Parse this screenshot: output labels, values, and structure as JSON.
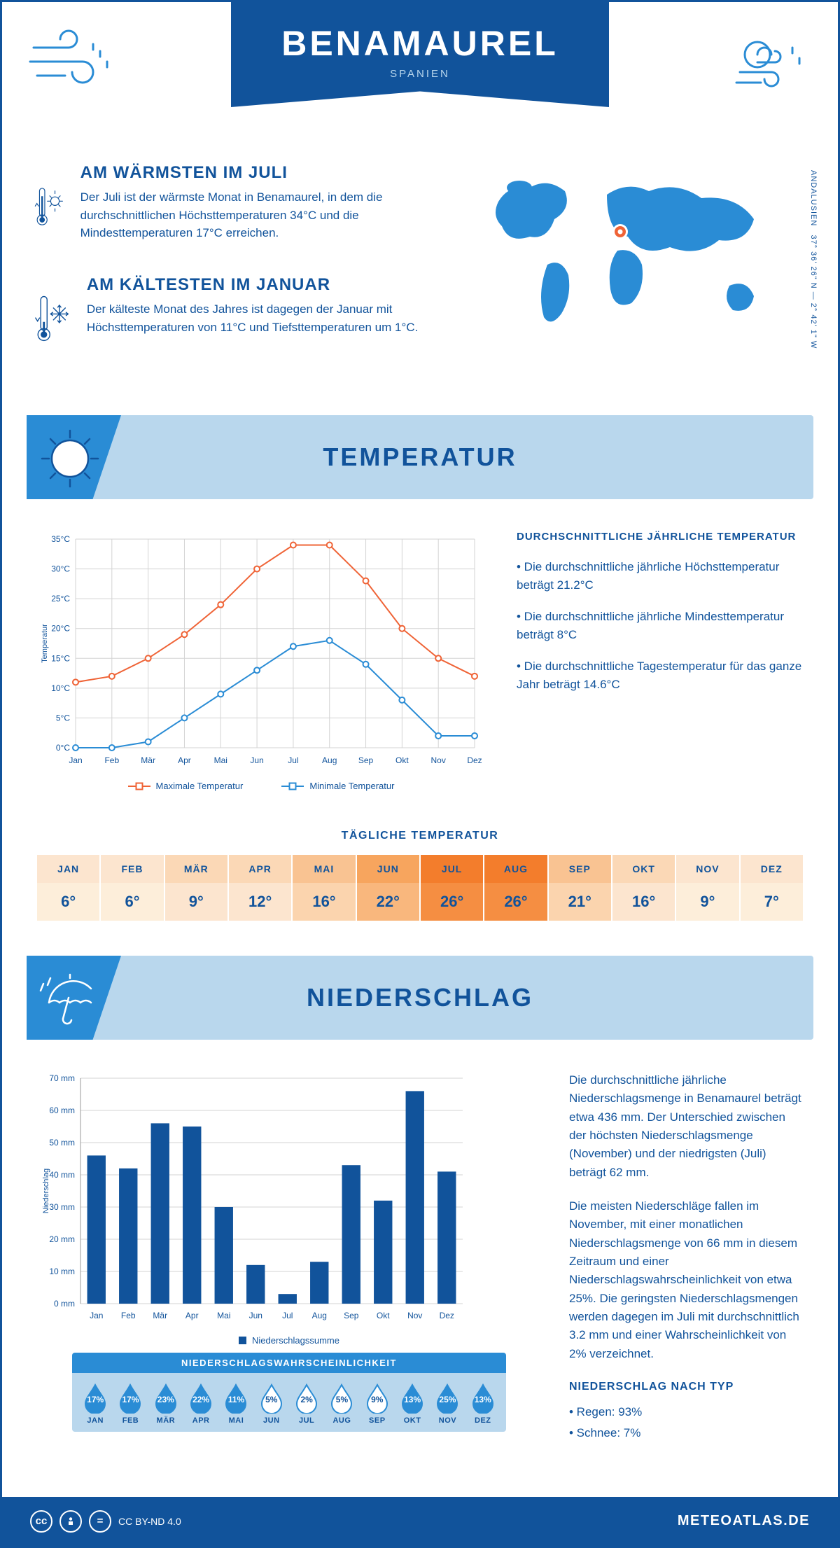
{
  "header": {
    "city": "BENAMAUREL",
    "country": "SPANIEN"
  },
  "coords": {
    "lat": "37° 36' 26\" N — 2° 42' 1\" W",
    "region": "ANDALUSIEN"
  },
  "warm": {
    "title": "AM WÄRMSTEN IM JULI",
    "text": "Der Juli ist der wärmste Monat in Benamaurel, in dem die durchschnittlichen Höchsttemperaturen 34°C und die Mindesttemperaturen 17°C erreichen."
  },
  "cold": {
    "title": "AM KÄLTESTEN IM JANUAR",
    "text": "Der kälteste Monat des Jahres ist dagegen der Januar mit Höchsttemperaturen von 11°C und Tiefsttemperaturen um 1°C."
  },
  "temp_section": "TEMPERATUR",
  "temp_chart": {
    "type": "line",
    "months": [
      "Jan",
      "Feb",
      "Mär",
      "Apr",
      "Mai",
      "Jun",
      "Jul",
      "Aug",
      "Sep",
      "Okt",
      "Nov",
      "Dez"
    ],
    "max": [
      11,
      12,
      15,
      19,
      24,
      30,
      34,
      34,
      28,
      20,
      15,
      12
    ],
    "min": [
      0,
      0,
      1,
      5,
      9,
      13,
      17,
      18,
      14,
      8,
      2,
      2
    ],
    "max_color": "#ef6336",
    "min_color": "#2a8cd5",
    "ylim": [
      0,
      35
    ],
    "ytick_step": 5,
    "yunit": "°C",
    "ylabel": "Temperatur",
    "grid_color": "#d3d3d3",
    "legend_max": "Maximale Temperatur",
    "legend_min": "Minimale Temperatur"
  },
  "temp_text": {
    "title": "DURCHSCHNITTLICHE JÄHRLICHE TEMPERATUR",
    "b1": "• Die durchschnittliche jährliche Höchsttemperatur beträgt 21.2°C",
    "b2": "• Die durchschnittliche jährliche Mindesttemperatur beträgt 8°C",
    "b3": "• Die durchschnittliche Tagestemperatur für das ganze Jahr beträgt 14.6°C"
  },
  "daily": {
    "title": "TÄGLICHE TEMPERATUR",
    "months": [
      "JAN",
      "FEB",
      "MÄR",
      "APR",
      "MAI",
      "JUN",
      "JUL",
      "AUG",
      "SEP",
      "OKT",
      "NOV",
      "DEZ"
    ],
    "values": [
      "6°",
      "6°",
      "9°",
      "12°",
      "16°",
      "22°",
      "26°",
      "26°",
      "21°",
      "16°",
      "9°",
      "7°"
    ],
    "head_colors": [
      "#fce5cf",
      "#fce5cf",
      "#fbd8b6",
      "#fbd8b6",
      "#f9c392",
      "#f7a55e",
      "#f37d2c",
      "#f37d2c",
      "#f9c392",
      "#fbd8b6",
      "#fce5cf",
      "#fce5cf"
    ],
    "val_colors": [
      "#fdeeda",
      "#fdeeda",
      "#fce5cf",
      "#fce5cf",
      "#fbd4ae",
      "#f9b77d",
      "#f58e42",
      "#f58e42",
      "#fbd4ae",
      "#fce5cf",
      "#fdeeda",
      "#fdeeda"
    ]
  },
  "precip_section": "NIEDERSCHLAG",
  "precip_chart": {
    "type": "bar",
    "months": [
      "Jan",
      "Feb",
      "Mär",
      "Apr",
      "Mai",
      "Jun",
      "Jul",
      "Aug",
      "Sep",
      "Okt",
      "Nov",
      "Dez"
    ],
    "values": [
      46,
      42,
      56,
      55,
      30,
      12,
      3,
      13,
      43,
      32,
      66,
      41
    ],
    "bar_color": "#11539b",
    "ylim": [
      0,
      70
    ],
    "ytick_step": 10,
    "yunit": " mm",
    "ylabel": "Niederschlag",
    "grid_color": "#d3d3d3",
    "legend": "Niederschlagssumme"
  },
  "precip_text": {
    "p1": "Die durchschnittliche jährliche Niederschlagsmenge in Benamaurel beträgt etwa 436 mm. Der Unterschied zwischen der höchsten Niederschlagsmenge (November) und der niedrigsten (Juli) beträgt 62 mm.",
    "p2": "Die meisten Niederschläge fallen im November, mit einer monatlichen Niederschlagsmenge von 66 mm in diesem Zeitraum und einer Niederschlagswahrscheinlichkeit von etwa 25%. Die geringsten Niederschlagsmengen werden dagegen im Juli mit durchschnittlich 3.2 mm und einer Wahrscheinlichkeit von 2% verzeichnet.",
    "type_title": "NIEDERSCHLAG NACH TYP",
    "type1": "• Regen: 93%",
    "type2": "• Schnee: 7%"
  },
  "prob": {
    "title": "NIEDERSCHLAGSWAHRSCHEINLICHKEIT",
    "months": [
      "JAN",
      "FEB",
      "MÄR",
      "APR",
      "MAI",
      "JUN",
      "JUL",
      "AUG",
      "SEP",
      "OKT",
      "NOV",
      "DEZ"
    ],
    "pct": [
      "17%",
      "17%",
      "23%",
      "22%",
      "11%",
      "5%",
      "2%",
      "5%",
      "9%",
      "13%",
      "25%",
      "13%"
    ],
    "filled": [
      true,
      true,
      true,
      true,
      true,
      false,
      false,
      false,
      false,
      true,
      true,
      true
    ],
    "fill_color": "#2a8cd5",
    "empty_fill": "#ffffff",
    "stroke": "#2a8cd5"
  },
  "footer": {
    "license": "CC BY-ND 4.0",
    "site": "METEOATLAS.DE"
  },
  "colors": {
    "primary": "#11539b",
    "secondary": "#2a8cd5",
    "light": "#b9d7ed"
  }
}
